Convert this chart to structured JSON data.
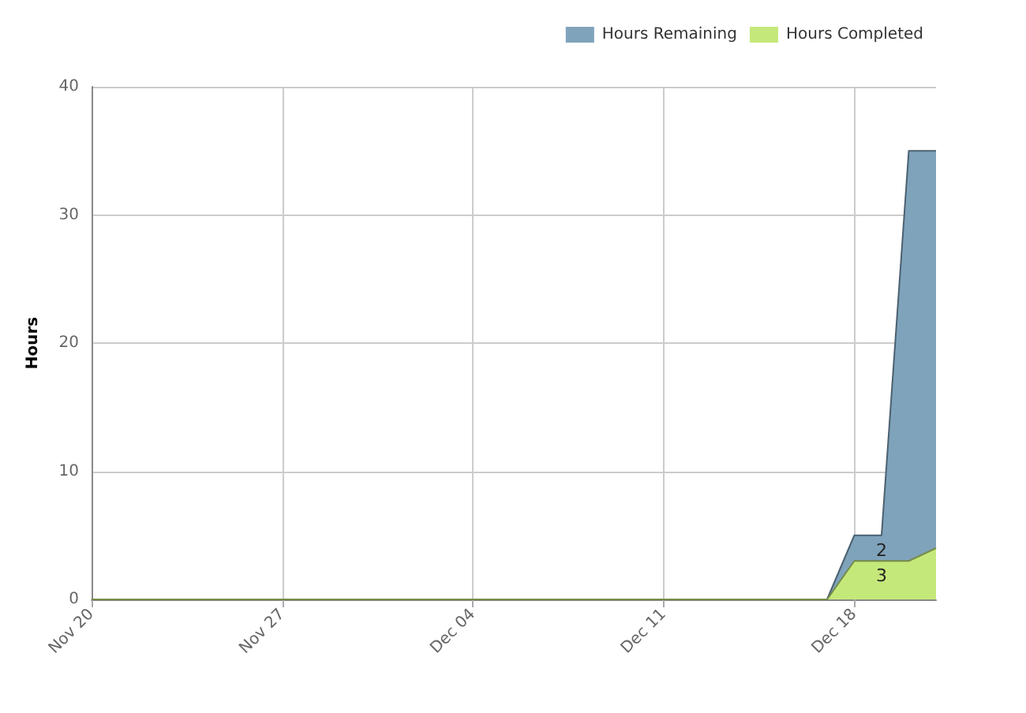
{
  "chart_data": {
    "type": "area",
    "stacked": true,
    "ylabel": "Hours",
    "legend": "top right",
    "grid": true,
    "x": [
      "--11-20",
      "--12-17",
      "--12-18",
      "--12-19",
      "--12-20",
      "--12-21"
    ],
    "xlim": [
      "--11-20",
      "--12-21"
    ],
    "xticks": [
      {
        "value": "--11-20",
        "label": "Nov 20"
      },
      {
        "value": "--11-27",
        "label": "Nov 27"
      },
      {
        "value": "--12-04",
        "label": "Dec 04"
      },
      {
        "value": "--12-11",
        "label": "Dec 11"
      },
      {
        "value": "--12-18",
        "label": "Dec 18"
      }
    ],
    "ylim": [
      0,
      40
    ],
    "yticks": [
      0,
      10,
      20,
      30,
      40
    ],
    "series": [
      {
        "name": "Hours Completed",
        "color": "#c5e87a",
        "values": [
          0,
          0,
          3,
          3,
          3,
          4
        ],
        "value_labels": [
          null,
          null,
          null,
          "3",
          null,
          null
        ]
      },
      {
        "name": "Hours Remaining",
        "color": "#7fa3bb",
        "values": [
          0,
          0,
          2,
          2,
          32,
          31
        ],
        "value_labels": [
          null,
          null,
          null,
          "2",
          null,
          null
        ]
      }
    ]
  }
}
